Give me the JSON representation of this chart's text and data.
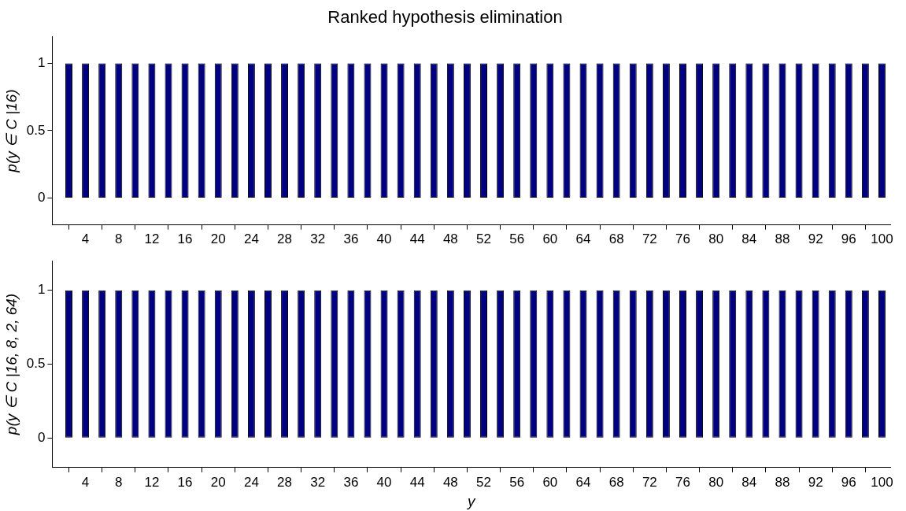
{
  "chart_data": [
    {
      "type": "bar",
      "title": "Ranked hypothesis elimination",
      "ylabel": "p(y ∈ C |16)",
      "color": "#000080",
      "x": [
        1,
        2,
        3,
        4,
        5,
        6,
        7,
        8,
        9,
        10,
        11,
        12,
        13,
        14,
        15,
        16,
        17,
        18,
        19,
        20,
        21,
        22,
        23,
        24,
        25,
        26,
        27,
        28,
        29,
        30,
        31,
        32,
        33,
        34,
        35,
        36,
        37,
        38,
        39,
        40,
        41,
        42,
        43,
        44,
        45,
        46,
        47,
        48,
        49,
        50,
        51,
        52,
        53,
        54,
        55,
        56,
        57,
        58,
        59,
        60,
        61,
        62,
        63,
        64,
        65,
        66,
        67,
        68,
        69,
        70,
        71,
        72,
        73,
        74,
        75,
        76,
        77,
        78,
        79,
        80,
        81,
        82,
        83,
        84,
        85,
        86,
        87,
        88,
        89,
        90,
        91,
        92,
        93,
        94,
        95,
        96,
        97,
        98,
        99,
        100
      ],
      "values": [
        0,
        1,
        0,
        1,
        0,
        1,
        0,
        1,
        0,
        1,
        0,
        1,
        0,
        1,
        0,
        1,
        0,
        1,
        0,
        1,
        0,
        1,
        0,
        1,
        0,
        1,
        0,
        1,
        0,
        1,
        0,
        1,
        0,
        1,
        0,
        1,
        0,
        1,
        0,
        1,
        0,
        1,
        0,
        1,
        0,
        1,
        0,
        1,
        0,
        1,
        0,
        1,
        0,
        1,
        0,
        1,
        0,
        1,
        0,
        1,
        0,
        1,
        0,
        1,
        0,
        1,
        0,
        1,
        0,
        1,
        0,
        1,
        0,
        1,
        0,
        1,
        0,
        1,
        0,
        1,
        0,
        1,
        0,
        1,
        0,
        1,
        0,
        1,
        0,
        1,
        0,
        1,
        0,
        1,
        0,
        1,
        0,
        1,
        0,
        1
      ],
      "xlim": [
        0,
        101
      ],
      "xticks": [
        4,
        8,
        12,
        16,
        20,
        24,
        28,
        32,
        36,
        40,
        44,
        48,
        52,
        56,
        60,
        64,
        68,
        72,
        76,
        80,
        84,
        88,
        92,
        96,
        100
      ],
      "ylim": [
        -0.2,
        1.2
      ],
      "yticks": [
        0,
        0.5,
        1
      ]
    },
    {
      "type": "bar",
      "xlabel": "y",
      "ylabel": "p(y ∈ C |16, 8, 2, 64)",
      "color": "#000080",
      "x": [
        1,
        2,
        3,
        4,
        5,
        6,
        7,
        8,
        9,
        10,
        11,
        12,
        13,
        14,
        15,
        16,
        17,
        18,
        19,
        20,
        21,
        22,
        23,
        24,
        25,
        26,
        27,
        28,
        29,
        30,
        31,
        32,
        33,
        34,
        35,
        36,
        37,
        38,
        39,
        40,
        41,
        42,
        43,
        44,
        45,
        46,
        47,
        48,
        49,
        50,
        51,
        52,
        53,
        54,
        55,
        56,
        57,
        58,
        59,
        60,
        61,
        62,
        63,
        64,
        65,
        66,
        67,
        68,
        69,
        70,
        71,
        72,
        73,
        74,
        75,
        76,
        77,
        78,
        79,
        80,
        81,
        82,
        83,
        84,
        85,
        86,
        87,
        88,
        89,
        90,
        91,
        92,
        93,
        94,
        95,
        96,
        97,
        98,
        99,
        100
      ],
      "values": [
        0,
        1,
        0,
        1,
        0,
        1,
        0,
        1,
        0,
        1,
        0,
        1,
        0,
        1,
        0,
        1,
        0,
        1,
        0,
        1,
        0,
        1,
        0,
        1,
        0,
        1,
        0,
        1,
        0,
        1,
        0,
        1,
        0,
        1,
        0,
        1,
        0,
        1,
        0,
        1,
        0,
        1,
        0,
        1,
        0,
        1,
        0,
        1,
        0,
        1,
        0,
        1,
        0,
        1,
        0,
        1,
        0,
        1,
        0,
        1,
        0,
        1,
        0,
        1,
        0,
        1,
        0,
        1,
        0,
        1,
        0,
        1,
        0,
        1,
        0,
        1,
        0,
        1,
        0,
        1,
        0,
        1,
        0,
        1,
        0,
        1,
        0,
        1,
        0,
        1,
        0,
        1,
        0,
        1,
        0,
        1,
        0,
        1,
        0,
        1
      ],
      "xlim": [
        0,
        101
      ],
      "xticks": [
        4,
        8,
        12,
        16,
        20,
        24,
        28,
        32,
        36,
        40,
        44,
        48,
        52,
        56,
        60,
        64,
        68,
        72,
        76,
        80,
        84,
        88,
        92,
        96,
        100
      ],
      "ylim": [
        -0.2,
        1.2
      ],
      "yticks": [
        0,
        0.5,
        1
      ]
    }
  ]
}
